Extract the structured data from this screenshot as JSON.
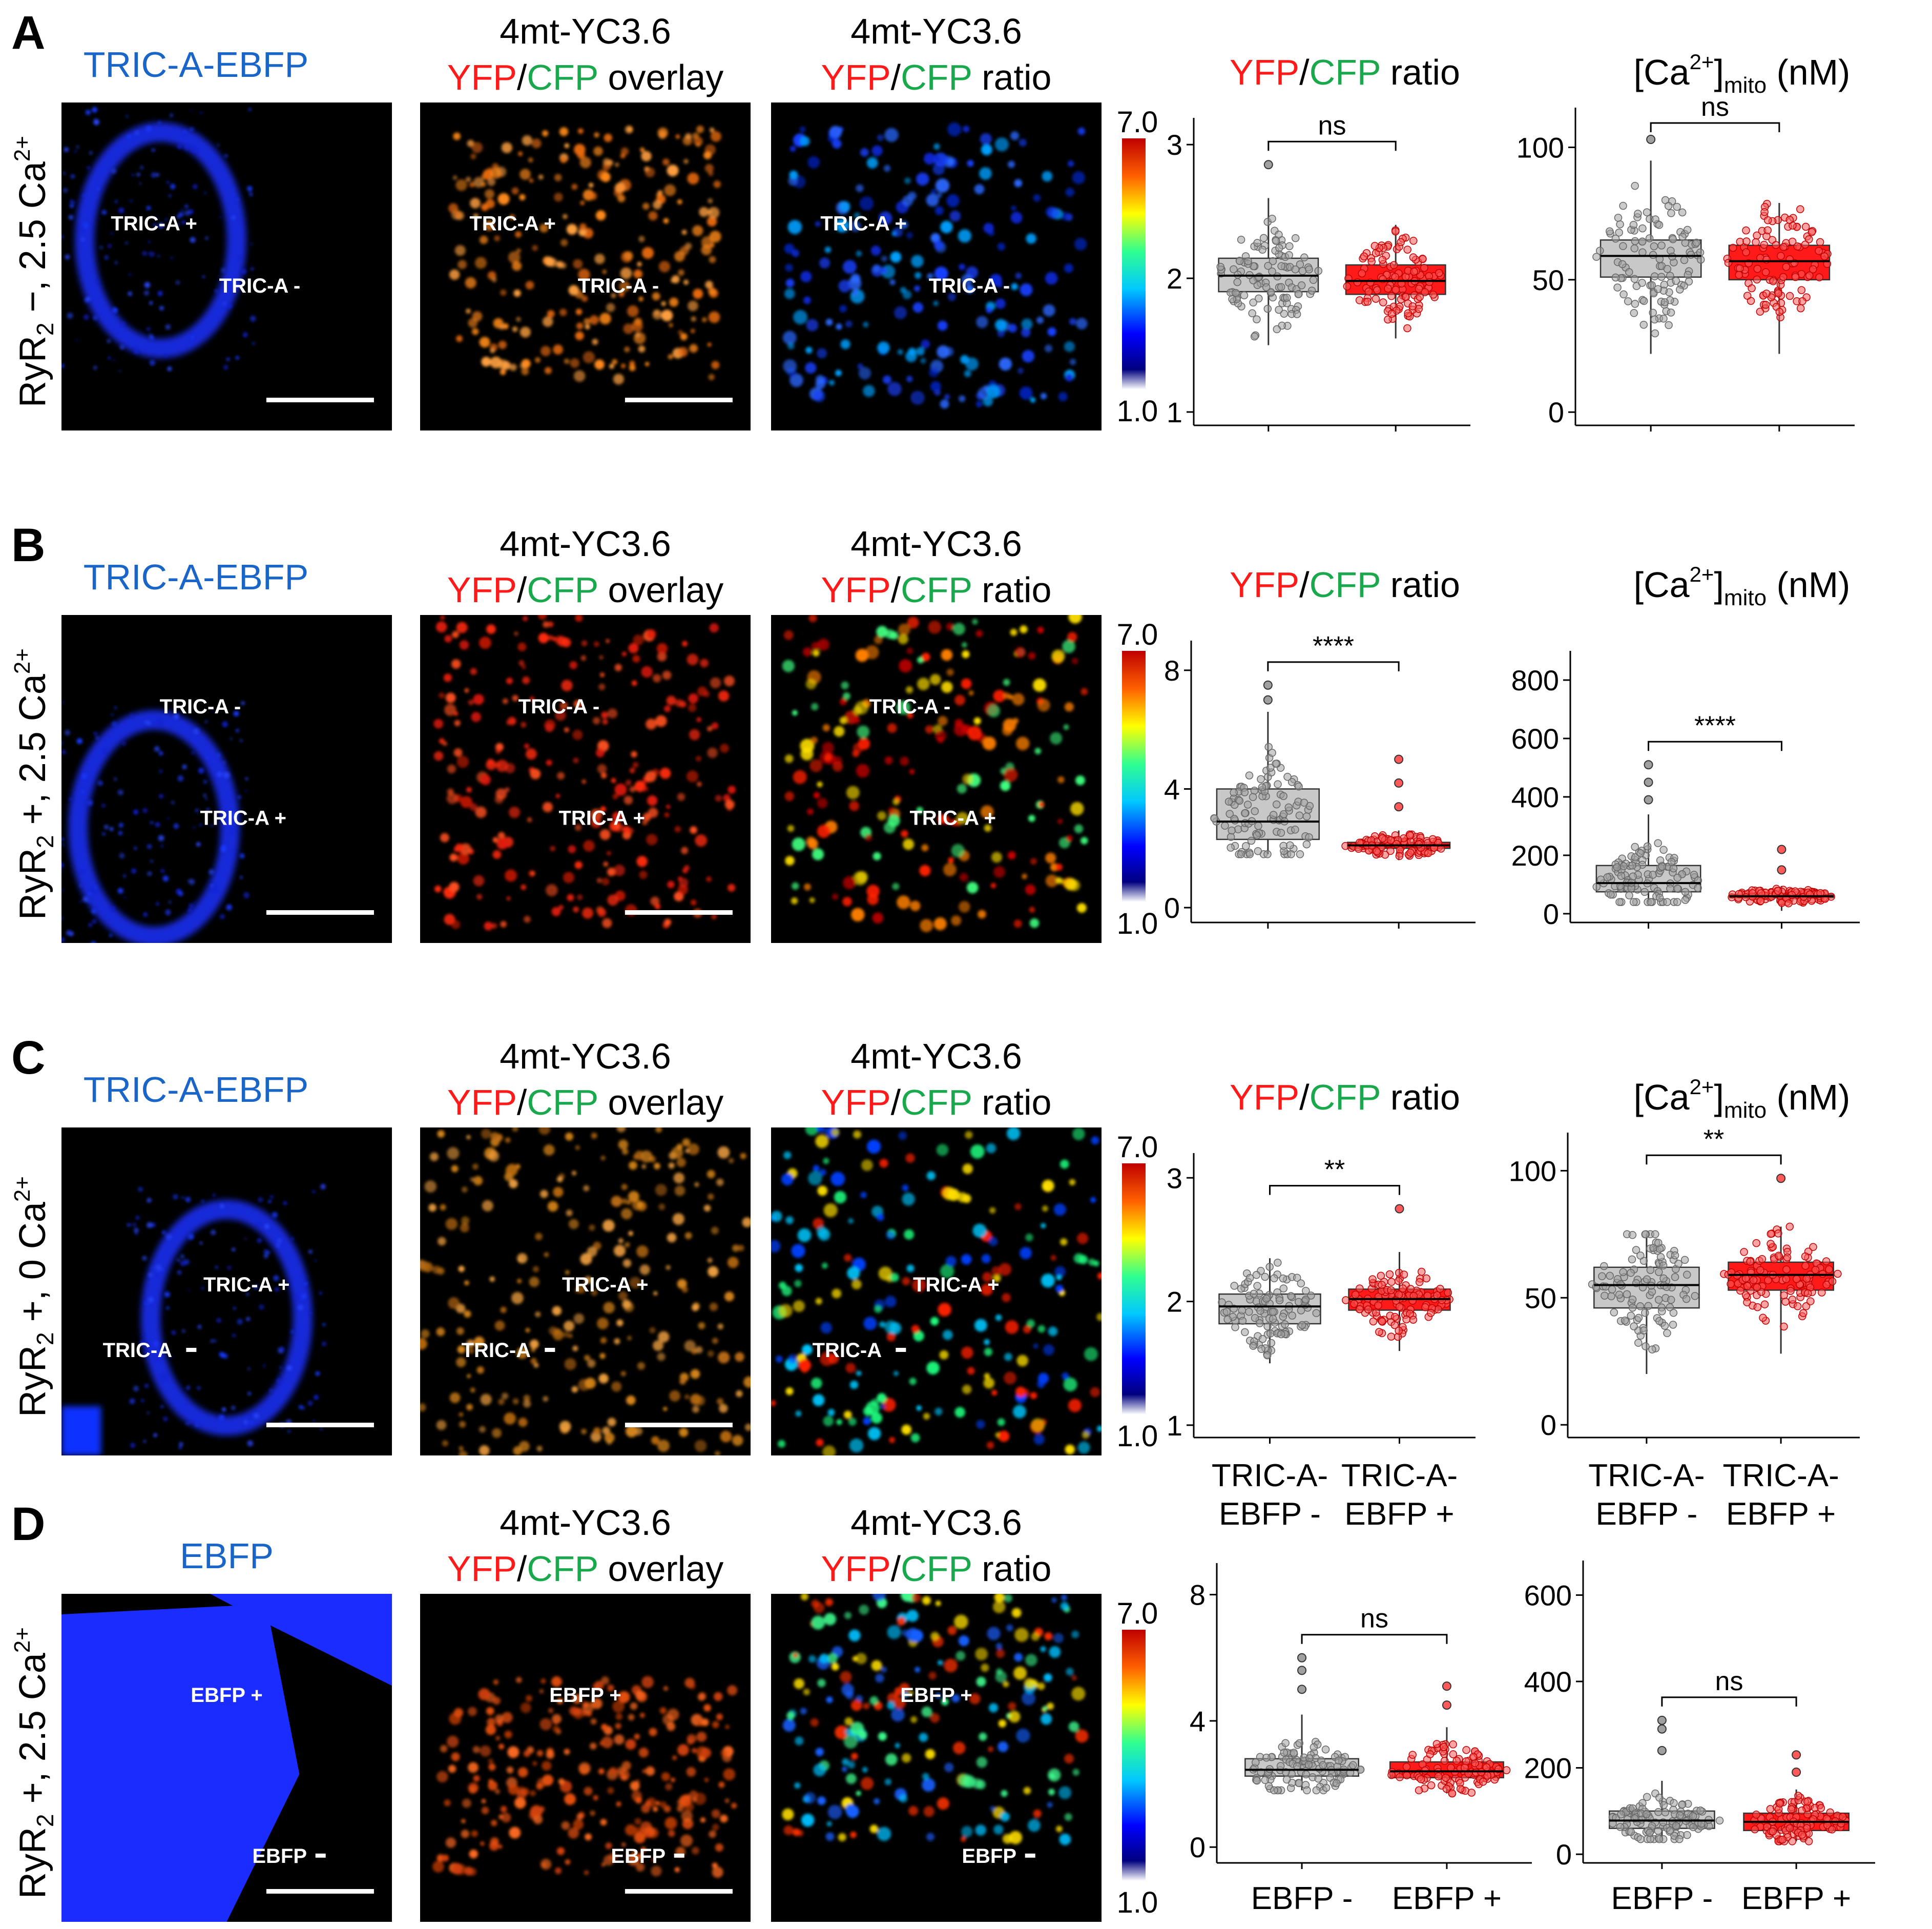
{
  "figure": {
    "colorbar": {
      "max": "7.0",
      "min": "1.0"
    },
    "panels": [
      {
        "letter": "A",
        "row_label": "RyR₂ −, 2.5 Ca²⁺",
        "row_label_parts": {
          "base": "RyR",
          "sub": "2",
          "mid": " −, 2.5 Ca",
          "sup": "2+"
        },
        "col1_title": "TRIC-A-EBFP",
        "col2_title": {
          "line1": "4mt-YC3.6",
          "yfp": "YFP",
          "slash": "/",
          "cfp": "CFP",
          "suffix": " overlay"
        },
        "col3_title": {
          "line1": "4mt-YC3.6",
          "yfp": "YFP",
          "slash": "/",
          "cfp": "CFP",
          "suffix": " ratio"
        },
        "image_labels": {
          "plus": "TRIC-A +",
          "minus": "TRIC-A -"
        },
        "chart_titles": {
          "ratio": {
            "yfp": "YFP",
            "slash": "/",
            "cfp": "CFP",
            "suffix": " ratio"
          },
          "ca": {
            "text": "[Ca2+]mito (nM)"
          }
        }
      },
      {
        "letter": "B",
        "row_label_parts": {
          "base": "RyR",
          "sub": "2",
          "mid": " +, 2.5 Ca",
          "sup": "2+"
        },
        "col1_title": "TRIC-A-EBFP",
        "image_labels": {
          "plus": "TRIC-A +",
          "minus": "TRIC-A -"
        }
      },
      {
        "letter": "C",
        "row_label_parts": {
          "base": "RyR",
          "sub": "2",
          "mid": " +, 0 Ca",
          "sup": "2+"
        },
        "col1_title": "TRIC-A-EBFP",
        "image_labels": {
          "plus": "TRIC-A +",
          "minus": "TRIC-A"
        }
      },
      {
        "letter": "D",
        "row_label_parts": {
          "base": "RyR",
          "sub": "2",
          "mid": " +, 2.5 Ca",
          "sup": "2+"
        },
        "col1_title": "EBFP",
        "image_labels": {
          "plus": "EBFP +",
          "minus": "EBFP"
        }
      }
    ],
    "ca_title_parts": {
      "open": "[Ca",
      "sup": "2+",
      "close": "]",
      "sub": "mito",
      "unit": " (nM)"
    },
    "x_categories": {
      "tric": [
        [
          "TRIC-A-",
          "EBFP -"
        ],
        [
          "TRIC-A-",
          "EBFP +"
        ]
      ],
      "ebfp": [
        "EBFP -",
        "EBFP +"
      ]
    }
  },
  "chart_data": [
    {
      "type": "box",
      "panel": "A",
      "measure": "YFP/CFP ratio",
      "categories": [
        "TRIC-A-EBFP -",
        "TRIC-A-EBFP +"
      ],
      "ylim": [
        0.9,
        3.2
      ],
      "yticks": [
        1,
        2,
        3
      ],
      "significance": "ns",
      "boxes": [
        {
          "q1": 1.9,
          "median": 2.02,
          "q3": 2.15,
          "whisker_low": 1.5,
          "whisker_high": 2.6,
          "outliers": [
            2.85
          ]
        },
        {
          "q1": 1.88,
          "median": 1.98,
          "q3": 2.1,
          "whisker_low": 1.55,
          "whisker_high": 2.4,
          "outliers": []
        }
      ]
    },
    {
      "type": "box",
      "panel": "A",
      "measure": "[Ca2+]mito (nM)",
      "categories": [
        "TRIC-A-EBFP -",
        "TRIC-A-EBFP +"
      ],
      "ylim": [
        -5,
        115
      ],
      "yticks": [
        0,
        50,
        100
      ],
      "significance": "ns",
      "boxes": [
        {
          "q1": 51,
          "median": 59,
          "q3": 65,
          "whisker_low": 22,
          "whisker_high": 95,
          "outliers": [
            103
          ]
        },
        {
          "q1": 50,
          "median": 57,
          "q3": 63,
          "whisker_low": 22,
          "whisker_high": 79,
          "outliers": []
        }
      ]
    },
    {
      "type": "box",
      "panel": "B",
      "measure": "YFP/CFP ratio",
      "categories": [
        "TRIC-A-EBFP -",
        "TRIC-A-EBFP +"
      ],
      "ylim": [
        -0.5,
        9
      ],
      "yticks": [
        0,
        4,
        8
      ],
      "significance": "****",
      "boxes": [
        {
          "q1": 2.3,
          "median": 2.9,
          "q3": 4.0,
          "whisker_low": 1.8,
          "whisker_high": 6.6,
          "outliers": [
            7.0,
            7.5
          ]
        },
        {
          "q1": 2.0,
          "median": 2.1,
          "q3": 2.2,
          "whisker_low": 1.6,
          "whisker_high": 2.6,
          "outliers": [
            3.4,
            4.2,
            5.0
          ]
        }
      ]
    },
    {
      "type": "box",
      "panel": "B",
      "measure": "[Ca2+]mito (nM)",
      "categories": [
        "TRIC-A-EBFP -",
        "TRIC-A-EBFP +"
      ],
      "ylim": [
        -30,
        900
      ],
      "yticks": [
        0,
        200,
        400,
        600,
        800
      ],
      "significance": "****",
      "boxes": [
        {
          "q1": 75,
          "median": 105,
          "q3": 165,
          "whisker_low": 40,
          "whisker_high": 340,
          "outliers": [
            390,
            450,
            510
          ]
        },
        {
          "q1": 55,
          "median": 60,
          "q3": 66,
          "whisker_low": 10,
          "whisker_high": 95,
          "outliers": [
            150,
            220
          ]
        }
      ]
    },
    {
      "type": "box",
      "panel": "C",
      "measure": "YFP/CFP ratio",
      "categories": [
        "TRIC-A-EBFP -",
        "TRIC-A-EBFP +"
      ],
      "ylim": [
        0.9,
        3.2
      ],
      "yticks": [
        1,
        2,
        3
      ],
      "significance": "**",
      "boxes": [
        {
          "q1": 1.82,
          "median": 1.96,
          "q3": 2.06,
          "whisker_low": 1.5,
          "whisker_high": 2.35,
          "outliers": []
        },
        {
          "q1": 1.93,
          "median": 2.02,
          "q3": 2.1,
          "whisker_low": 1.6,
          "whisker_high": 2.4,
          "outliers": [
            2.75
          ]
        }
      ]
    },
    {
      "type": "box",
      "panel": "C",
      "measure": "[Ca2+]mito (nM)",
      "categories": [
        "TRIC-A-EBFP -",
        "TRIC-A-EBFP +"
      ],
      "ylim": [
        -5,
        115
      ],
      "yticks": [
        0,
        50,
        100
      ],
      "significance": "**",
      "boxes": [
        {
          "q1": 46,
          "median": 55,
          "q3": 62,
          "whisker_low": 20,
          "whisker_high": 75,
          "outliers": []
        },
        {
          "q1": 53,
          "median": 59,
          "q3": 64,
          "whisker_low": 28,
          "whisker_high": 78,
          "outliers": [
            97
          ]
        }
      ]
    },
    {
      "type": "box",
      "panel": "D",
      "measure": "YFP/CFP ratio",
      "categories": [
        "EBFP -",
        "EBFP +"
      ],
      "ylim": [
        -0.5,
        9
      ],
      "yticks": [
        0,
        4,
        8
      ],
      "significance": "ns",
      "boxes": [
        {
          "q1": 2.25,
          "median": 2.45,
          "q3": 2.8,
          "whisker_low": 1.8,
          "whisker_high": 4.2,
          "outliers": [
            5.0,
            5.6,
            6.0
          ]
        },
        {
          "q1": 2.2,
          "median": 2.4,
          "q3": 2.7,
          "whisker_low": 1.7,
          "whisker_high": 3.8,
          "outliers": [
            4.5,
            5.1
          ]
        }
      ]
    },
    {
      "type": "box",
      "panel": "D",
      "measure": "[Ca2+]mito (nM)",
      "categories": [
        "EBFP -",
        "EBFP +"
      ],
      "ylim": [
        -20,
        680
      ],
      "yticks": [
        0,
        200,
        400,
        600
      ],
      "significance": "ns",
      "boxes": [
        {
          "q1": 60,
          "median": 78,
          "q3": 100,
          "whisker_low": 35,
          "whisker_high": 170,
          "outliers": [
            240,
            290,
            310
          ]
        },
        {
          "q1": 55,
          "median": 75,
          "q3": 95,
          "whisker_low": 30,
          "whisker_high": 150,
          "outliers": [
            190,
            230
          ]
        }
      ]
    }
  ]
}
